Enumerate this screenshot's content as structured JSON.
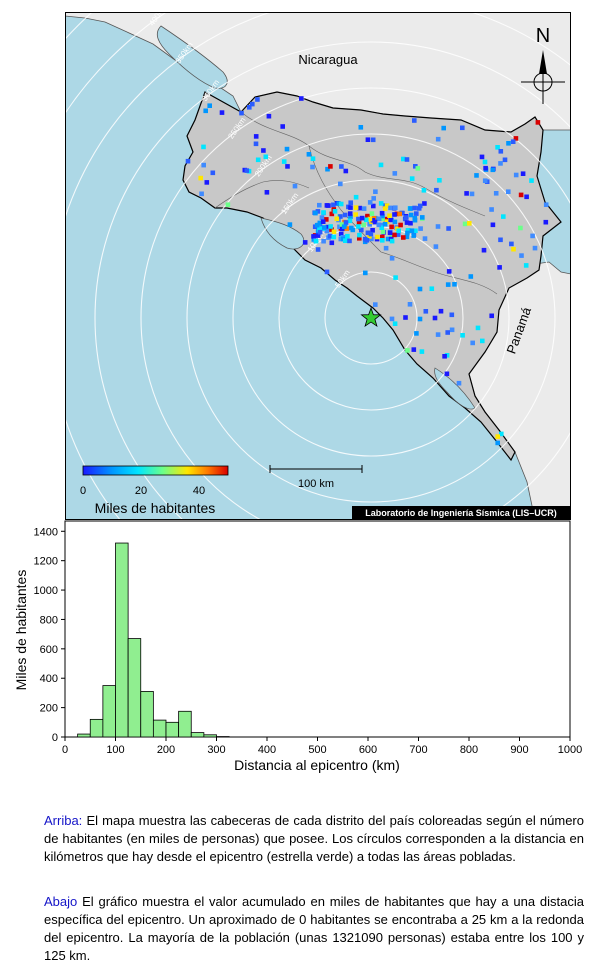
{
  "map": {
    "country_labels": [
      "Nicaragua",
      "Panamá"
    ],
    "north_label": "N",
    "ring_labels": [
      "50km",
      "100km",
      "150km",
      "200km",
      "250km",
      "300km",
      "350km",
      "400km",
      "450km"
    ],
    "colorbar": {
      "ticks": [
        "0",
        "20",
        "40"
      ],
      "title": "Miles de habitantes",
      "colors": [
        "#1a1aff",
        "#0096ff",
        "#00e5ff",
        "#6bff8a",
        "#ffe600",
        "#ff7a00",
        "#d90000"
      ]
    },
    "scale_label": "100 km",
    "credit": "Laboratorio de Ingeniería Sísmica (LIS–UCR)",
    "colors": {
      "ocean": "#add8e6",
      "costa_rica": "#c8c8c8",
      "neighbors": "#ebebeb",
      "epicenter": "#33cc33"
    }
  },
  "chart_data": {
    "type": "bar",
    "bin_width": 25,
    "bin_starts": [
      0,
      25,
      50,
      75,
      100,
      125,
      150,
      175,
      200,
      225,
      250,
      275,
      300
    ],
    "values": [
      0,
      20,
      120,
      350,
      1320,
      670,
      310,
      115,
      100,
      175,
      30,
      15,
      3
    ],
    "xlabel": "Distancia al epicentro (km)",
    "ylabel": "Miles de habitantes",
    "xlim": [
      0,
      1000
    ],
    "ylim": [
      0,
      1470
    ],
    "xticks": [
      0,
      100,
      200,
      300,
      400,
      500,
      600,
      700,
      800,
      900,
      1000
    ],
    "yticks": [
      0,
      200,
      400,
      600,
      800,
      1000,
      1200,
      1400
    ],
    "bar_color": "#90ee90"
  },
  "captions": {
    "top_lead": "Arriba:",
    "top_text": " El mapa muestra las cabeceras de cada distrito del país coloreadas según el número de habitantes (en miles de personas) que posee.  Los círculos corresponden a la distancia en kilómetros que hay desde el epicentro (estrella verde) a todas las áreas pobladas.",
    "bottom_lead": "Abajo",
    "bottom_text": " El gráfico muestra el valor acumulado en miles de habitantes que hay a una distacia específica del epicentro.  Un aproximado de 0 habitantes se encontraba a 25 km a la redonda del epicentro.  La mayoría de la población (unas 1321090 personas) estaba entre los 100 y 125 km."
  }
}
